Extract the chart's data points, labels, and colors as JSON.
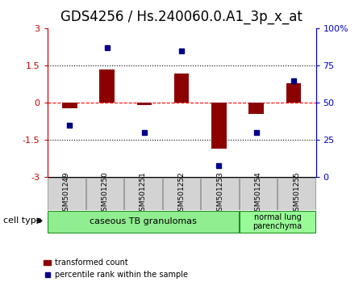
{
  "title": "GDS4256 / Hs.240060.0.A1_3p_x_at",
  "samples": [
    "GSM501249",
    "GSM501250",
    "GSM501251",
    "GSM501252",
    "GSM501253",
    "GSM501254",
    "GSM501255"
  ],
  "bar_values": [
    -0.2,
    1.35,
    -0.07,
    1.2,
    -1.85,
    -0.45,
    0.8
  ],
  "dot_values": [
    35,
    87,
    30,
    85,
    8,
    30,
    65
  ],
  "ylim_left": [
    -3,
    3
  ],
  "ylim_right": [
    0,
    100
  ],
  "yticks_left": [
    -3,
    -1.5,
    0,
    1.5,
    3
  ],
  "ytick_labels_left": [
    "-3",
    "-1.5",
    "0",
    "1.5",
    "3"
  ],
  "yticks_right": [
    0,
    25,
    50,
    75,
    100
  ],
  "ytick_labels_right": [
    "0",
    "25",
    "50",
    "75",
    "100%"
  ],
  "hline_dotted": [
    -1.5,
    1.5
  ],
  "hline_red_dashed": 0,
  "bar_color": "#8B0000",
  "dot_color": "#00008B",
  "bar_width": 0.4,
  "group1_label": "caseous TB granulomas",
  "group2_label": "normal lung\nparenchyma",
  "cell_type_label": "cell type",
  "legend_bar_label": "transformed count",
  "legend_dot_label": "percentile rank within the sample",
  "group1_color": "#90EE90",
  "group2_color": "#98FB98",
  "title_fontsize": 12,
  "tick_label_fontsize": 8,
  "axis_color_left": "#CC0000",
  "axis_color_right": "#0000CC"
}
